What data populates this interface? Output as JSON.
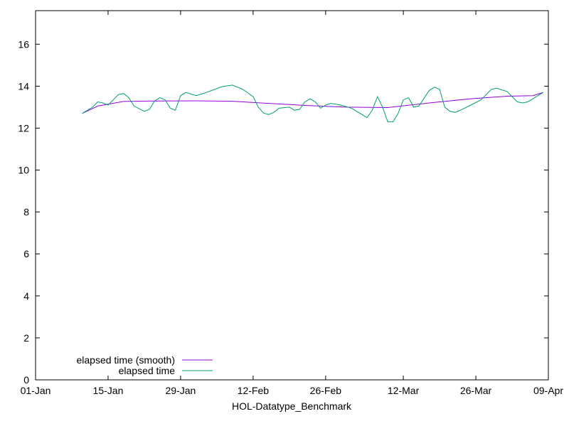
{
  "chart_data": {
    "type": "line",
    "title": "",
    "xlabel": "HOL-Datatype_Benchmark",
    "ylabel": "",
    "x_axis": {
      "type": "date",
      "range": [
        "2024-01-01",
        "2024-04-09"
      ],
      "ticks": [
        {
          "date": "2024-01-01",
          "label": "01-Jan"
        },
        {
          "date": "2024-01-15",
          "label": "15-Jan"
        },
        {
          "date": "2024-01-29",
          "label": "29-Jan"
        },
        {
          "date": "2024-02-12",
          "label": "12-Feb"
        },
        {
          "date": "2024-02-26",
          "label": "26-Feb"
        },
        {
          "date": "2024-03-12",
          "label": "12-Mar"
        },
        {
          "date": "2024-03-26",
          "label": "26-Mar"
        },
        {
          "date": "2024-04-09",
          "label": "09-Apr"
        }
      ]
    },
    "y_axis": {
      "range": [
        0,
        17.6
      ],
      "ticks": [
        0,
        2,
        4,
        6,
        8,
        10,
        12,
        14,
        16
      ]
    },
    "grid": false,
    "legend_position": "bottom-left",
    "series": [
      {
        "name": "elapsed time (smooth)",
        "color": "#9400d3",
        "points": [
          [
            "2024-01-10",
            12.7
          ],
          [
            "2024-01-13",
            13.05
          ],
          [
            "2024-01-18",
            13.27
          ],
          [
            "2024-01-24",
            13.29
          ],
          [
            "2024-02-01",
            13.3
          ],
          [
            "2024-02-08",
            13.28
          ],
          [
            "2024-02-15",
            13.18
          ],
          [
            "2024-02-22",
            13.08
          ],
          [
            "2024-03-01",
            13.0
          ],
          [
            "2024-03-09",
            12.98
          ],
          [
            "2024-03-17",
            13.2
          ],
          [
            "2024-03-25",
            13.4
          ],
          [
            "2024-04-01",
            13.52
          ],
          [
            "2024-04-06",
            13.55
          ],
          [
            "2024-04-08",
            13.7
          ]
        ]
      },
      {
        "name": "elapsed time",
        "color": "#009e73",
        "points": [
          [
            "2024-01-10",
            12.7
          ],
          [
            "2024-01-12",
            13.0
          ],
          [
            "2024-01-13",
            13.25
          ],
          [
            "2024-01-14",
            13.2
          ],
          [
            "2024-01-15",
            13.1
          ],
          [
            "2024-01-17",
            13.6
          ],
          [
            "2024-01-18",
            13.65
          ],
          [
            "2024-01-19",
            13.45
          ],
          [
            "2024-01-20",
            13.05
          ],
          [
            "2024-01-22",
            12.8
          ],
          [
            "2024-01-23",
            12.9
          ],
          [
            "2024-01-24",
            13.3
          ],
          [
            "2024-01-25",
            13.45
          ],
          [
            "2024-01-26",
            13.35
          ],
          [
            "2024-01-27",
            12.95
          ],
          [
            "2024-01-28",
            12.85
          ],
          [
            "2024-01-29",
            13.55
          ],
          [
            "2024-01-30",
            13.7
          ],
          [
            "2024-02-01",
            13.55
          ],
          [
            "2024-02-03",
            13.7
          ],
          [
            "2024-02-06",
            13.98
          ],
          [
            "2024-02-08",
            14.05
          ],
          [
            "2024-02-10",
            13.85
          ],
          [
            "2024-02-12",
            13.5
          ],
          [
            "2024-02-13",
            13.0
          ],
          [
            "2024-02-14",
            12.72
          ],
          [
            "2024-02-15",
            12.65
          ],
          [
            "2024-02-16",
            12.75
          ],
          [
            "2024-02-17",
            12.95
          ],
          [
            "2024-02-19",
            13.0
          ],
          [
            "2024-02-20",
            12.85
          ],
          [
            "2024-02-21",
            12.9
          ],
          [
            "2024-02-22",
            13.25
          ],
          [
            "2024-02-23",
            13.4
          ],
          [
            "2024-02-24",
            13.25
          ],
          [
            "2024-02-25",
            12.95
          ],
          [
            "2024-02-26",
            13.1
          ],
          [
            "2024-02-27",
            13.18
          ],
          [
            "2024-02-29",
            13.1
          ],
          [
            "2024-03-02",
            12.95
          ],
          [
            "2024-03-03",
            12.8
          ],
          [
            "2024-03-05",
            12.5
          ],
          [
            "2024-03-06",
            12.85
          ],
          [
            "2024-03-07",
            13.5
          ],
          [
            "2024-03-08",
            13.0
          ],
          [
            "2024-03-09",
            12.3
          ],
          [
            "2024-03-10",
            12.3
          ],
          [
            "2024-03-11",
            12.7
          ],
          [
            "2024-03-12",
            13.35
          ],
          [
            "2024-03-13",
            13.45
          ],
          [
            "2024-03-14",
            13.0
          ],
          [
            "2024-03-15",
            13.05
          ],
          [
            "2024-03-17",
            13.8
          ],
          [
            "2024-03-18",
            13.95
          ],
          [
            "2024-03-19",
            13.85
          ],
          [
            "2024-03-20",
            13.0
          ],
          [
            "2024-03-21",
            12.8
          ],
          [
            "2024-03-22",
            12.75
          ],
          [
            "2024-03-23",
            12.85
          ],
          [
            "2024-03-25",
            13.1
          ],
          [
            "2024-03-27",
            13.35
          ],
          [
            "2024-03-28",
            13.6
          ],
          [
            "2024-03-29",
            13.85
          ],
          [
            "2024-03-30",
            13.9
          ],
          [
            "2024-04-01",
            13.75
          ],
          [
            "2024-04-02",
            13.5
          ],
          [
            "2024-04-03",
            13.25
          ],
          [
            "2024-04-04",
            13.2
          ],
          [
            "2024-04-05",
            13.25
          ],
          [
            "2024-04-06",
            13.4
          ],
          [
            "2024-04-08",
            13.7
          ]
        ]
      }
    ]
  }
}
